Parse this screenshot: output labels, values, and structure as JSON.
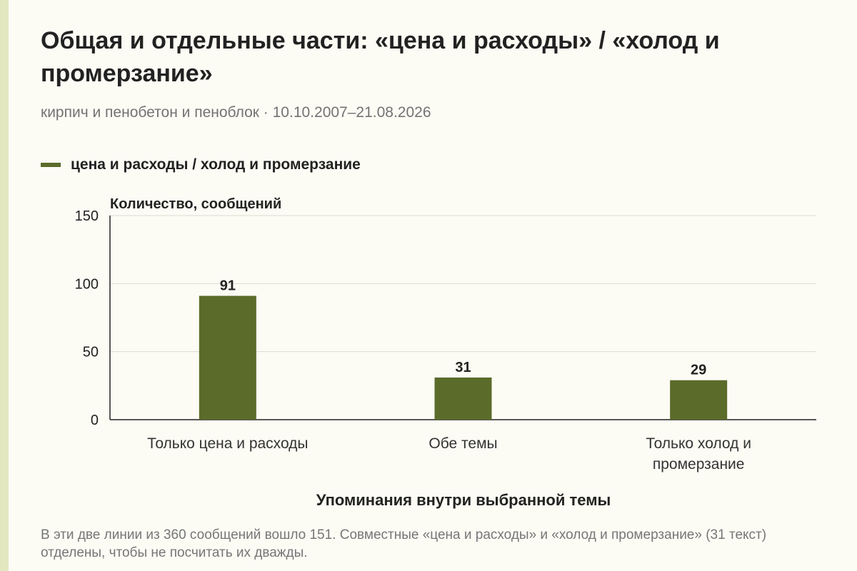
{
  "title": "Общая и отдельные части: «цена и расходы» / «холод и промерзание»",
  "subtitle": "кирпич и пенобетон и пеноблок · 10.10.2007–21.08.2026",
  "footnote": "В эти две линии из 360 сообщений вошло 151. Совместные «цена и расходы» и «холод и промерзание» (31 текст) отделены, чтобы не посчитать их дважды.",
  "colors": {
    "bar": "#5b6b2a",
    "grid": "#dcdcd4",
    "axis": "#222222"
  },
  "chart_data": {
    "type": "bar",
    "categories": [
      "Только цена и расходы",
      "Обе темы",
      "Только холод и промерзание"
    ],
    "series": [
      {
        "name": "цена и расходы / холод и промерзание",
        "values": [
          91,
          31,
          29
        ]
      }
    ],
    "xlabel": "Упоминания внутри выбранной темы",
    "ylabel": "Количество, сообщений",
    "ylim": [
      0,
      150
    ],
    "yticks": [
      0,
      50,
      100,
      150
    ],
    "grid": true,
    "data_labels": true,
    "legend_position": "top-left"
  }
}
